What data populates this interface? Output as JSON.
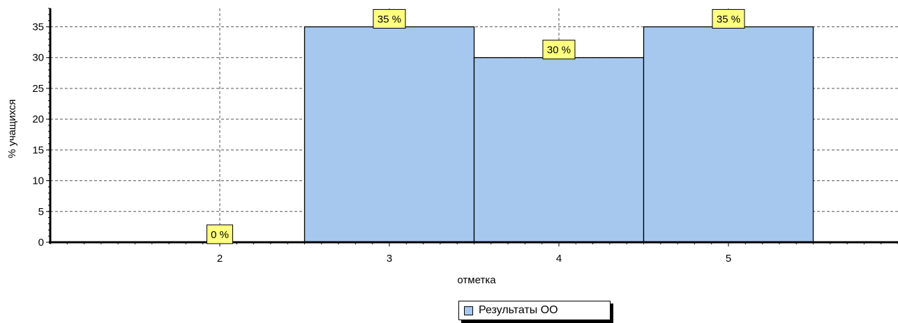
{
  "chart_data": {
    "type": "bar",
    "xlabel": "отметка",
    "ylabel": "% учащихся",
    "x_ticks": [
      "2",
      "3",
      "4",
      "5"
    ],
    "y_ticks": [
      "0",
      "5",
      "10",
      "15",
      "20",
      "25",
      "30",
      "35"
    ],
    "ylim": [
      0,
      38
    ],
    "xlim": [
      1,
      6
    ],
    "grid": true,
    "legend_position": "bottom-center",
    "series": [
      {
        "name": "Результаты ОО",
        "color": "#a6c8ee",
        "points": [
          {
            "x": "2",
            "value": 0,
            "label": "0 %"
          },
          {
            "x": "3",
            "value": 35,
            "label": "35 %"
          },
          {
            "x": "4",
            "value": 30,
            "label": "30 %"
          },
          {
            "x": "5",
            "value": 35,
            "label": "35 %"
          }
        ]
      }
    ],
    "label_box_color": "#ffff80"
  }
}
